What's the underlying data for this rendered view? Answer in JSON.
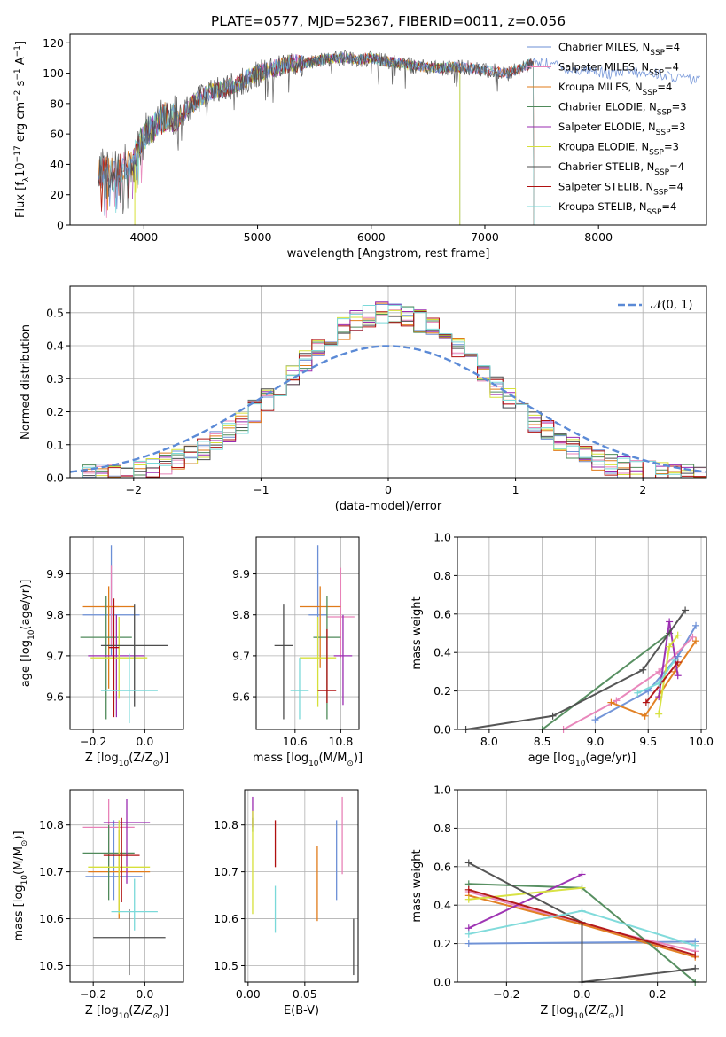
{
  "figure": {
    "title": "PLATE=0577, MJD=52367, FIBERID=0011, z=0.056"
  },
  "colors": {
    "Chabrier MILES": "#6b8fd6",
    "Salpeter MILES": "#e882b8",
    "Kroupa MILES": "#e07b1a",
    "Chabrier ELODIE": "#4f8a5a",
    "Salpeter ELODIE": "#9a2bb0",
    "Kroupa ELODIE": "#d6e03a",
    "Chabrier STELIB": "#4d4d4d",
    "Salpeter STELIB": "#b01010",
    "Kroupa STELIB": "#7ad9d9",
    "gaussian": "#5b8ad6",
    "grid": "#b0b0b0"
  },
  "chart_data": [
    {
      "id": "spectrum",
      "type": "line",
      "xlabel": "wavelength [Angstrom, rest frame]",
      "ylabel": "Flux [f_λ 10^-17 erg cm^-2 s^-1 A^-1]",
      "xlim": [
        3350,
        8950
      ],
      "ylim": [
        0,
        126
      ],
      "xticks": [
        4000,
        5000,
        6000,
        7000,
        8000
      ],
      "yticks": [
        0,
        20,
        40,
        60,
        80,
        100,
        120
      ],
      "grid": false,
      "legend": "top-right",
      "series_names": [
        "Chabrier MILES, N_SSP=4",
        "Salpeter MILES, N_SSP=4",
        "Kroupa MILES, N_SSP=4",
        "Chabrier ELODIE, N_SSP=3",
        "Salpeter ELODIE, N_SSP=3",
        "Kroupa ELODIE, N_SSP=3",
        "Chabrier STELIB, N_SSP=4",
        "Salpeter STELIB, N_SSP=4",
        "Kroupa STELIB, N_SSP=4"
      ],
      "series_ranges": [
        [
          3600,
          8900
        ],
        [
          3600,
          7430
        ],
        [
          3600,
          7430
        ],
        [
          3900,
          6780
        ],
        [
          3900,
          6780
        ],
        [
          3900,
          6780
        ],
        [
          3600,
          7430
        ],
        [
          3600,
          7430
        ],
        [
          3600,
          7430
        ]
      ],
      "continuum": {
        "x": [
          3600,
          3700,
          3800,
          3900,
          3950,
          4000,
          4100,
          4200,
          4300,
          4400,
          4500,
          4600,
          4700,
          4800,
          4900,
          5000,
          5100,
          5200,
          5300,
          5400,
          5500,
          5600,
          5700,
          5800,
          5900,
          6000,
          6100,
          6200,
          6300,
          6400,
          6500,
          6600,
          6700,
          6800,
          6900,
          7000,
          7100,
          7200,
          7300,
          7400,
          7500,
          7600,
          7700,
          7800,
          7900,
          8000,
          8100,
          8200,
          8300,
          8400,
          8500,
          8600,
          8700,
          8800,
          8900
        ],
        "y": [
          35,
          36,
          38,
          40,
          52,
          58,
          66,
          72,
          70,
          78,
          84,
          88,
          90,
          92,
          96,
          100,
          102,
          104,
          107,
          106,
          108,
          109,
          110,
          110,
          109,
          110,
          108,
          107,
          106,
          104,
          104,
          103,
          104,
          104,
          103,
          102,
          101,
          100,
          103,
          106,
          107,
          106,
          103,
          102,
          102,
          101,
          99,
          100,
          101,
          99,
          100,
          98,
          97,
          96,
          95
        ]
      }
    },
    {
      "id": "residuals",
      "type": "histogram",
      "xlabel": "(data-model)/error",
      "ylabel": "Normed distribution",
      "xlim": [
        -2.5,
        2.5
      ],
      "ylim": [
        0,
        0.58
      ],
      "xticks": [
        -2,
        -1,
        0,
        1,
        2
      ],
      "yticks": [
        0.0,
        0.1,
        0.2,
        0.3,
        0.4,
        0.5
      ],
      "grid": true,
      "bin_edges_range": [
        -2.5,
        2.5
      ],
      "bin_width": 0.1,
      "gaussian_label": "𝒩(0, 1)",
      "legend": "top-right"
    },
    {
      "id": "age-vs-Z",
      "type": "scatter",
      "xlabel": "Z [log10(Z/Z_⊙)]",
      "ylabel": "age [log10(age/yr)]",
      "xlim": [
        -0.29,
        0.15
      ],
      "ylim": [
        9.52,
        9.99
      ],
      "xticks": [
        -0.2,
        0.0
      ],
      "yticks": [
        9.6,
        9.7,
        9.8,
        9.9
      ],
      "grid": true,
      "points": [
        {
          "series": "Chabrier MILES",
          "x": -0.13,
          "xerr": 0.11,
          "y": 9.8,
          "yerr": [
            0.1,
            0.17
          ]
        },
        {
          "series": "Salpeter MILES",
          "x": -0.13,
          "xerr": 0.03,
          "y": 9.82,
          "yerr": [
            0.1,
            0.1
          ]
        },
        {
          "series": "Kroupa MILES",
          "x": -0.14,
          "xerr": 0.1,
          "y": 9.82,
          "yerr": [
            0.2,
            0.05
          ]
        },
        {
          "series": "Chabrier ELODIE",
          "x": -0.15,
          "xerr": 0.1,
          "y": 9.745,
          "yerr": [
            0.2,
            0.1
          ]
        },
        {
          "series": "Salpeter ELODIE",
          "x": -0.11,
          "xerr": 0.11,
          "y": 9.7,
          "yerr": [
            0.15,
            0.1
          ]
        },
        {
          "series": "Kroupa ELODIE",
          "x": -0.1,
          "xerr": 0.11,
          "y": 9.695,
          "yerr": [
            0.1,
            0.1
          ]
        },
        {
          "series": "Chabrier STELIB",
          "x": -0.04,
          "xerr": 0.13,
          "y": 9.725,
          "yerr": [
            0.15,
            0.1
          ]
        },
        {
          "series": "Salpeter STELIB",
          "x": -0.12,
          "xerr": 0.02,
          "y": 9.72,
          "yerr": [
            0.17,
            0.12
          ]
        },
        {
          "series": "Kroupa STELIB",
          "x": -0.06,
          "xerr": 0.11,
          "y": 9.615,
          "yerr": [
            0.08,
            0.09
          ]
        }
      ]
    },
    {
      "id": "age-vs-mass",
      "type": "scatter",
      "xlabel": "mass [log10(M/M_⊙)]",
      "ylabel": "",
      "xlim": [
        10.43,
        10.88
      ],
      "ylim": [
        9.52,
        9.99
      ],
      "xticks": [
        10.6,
        10.8
      ],
      "yticks": [
        9.6,
        9.7,
        9.8,
        9.9
      ],
      "grid": true,
      "points": [
        {
          "series": "Chabrier MILES",
          "x": 10.7,
          "xerr": 0.04,
          "y": 9.8,
          "yerr": [
            0.1,
            0.17
          ]
        },
        {
          "series": "Salpeter MILES",
          "x": 10.8,
          "xerr": 0.06,
          "y": 9.795,
          "yerr": [
            0.1,
            0.12
          ]
        },
        {
          "series": "Kroupa MILES",
          "x": 10.71,
          "xerr": 0.09,
          "y": 9.82,
          "yerr": [
            0.15,
            0.05
          ]
        },
        {
          "series": "Chabrier ELODIE",
          "x": 10.74,
          "xerr": 0.06,
          "y": 9.745,
          "yerr": [
            0.2,
            0.1
          ]
        },
        {
          "series": "Salpeter ELODIE",
          "x": 10.81,
          "xerr": 0.04,
          "y": 9.7,
          "yerr": [
            0.12,
            0.1
          ]
        },
        {
          "series": "Kroupa ELODIE",
          "x": 10.7,
          "xerr": 0.08,
          "y": 9.695,
          "yerr": [
            0.12,
            0.1
          ]
        },
        {
          "series": "Chabrier STELIB",
          "x": 10.55,
          "xerr": 0.04,
          "y": 9.725,
          "yerr": [
            0.18,
            0.1
          ]
        },
        {
          "series": "Salpeter STELIB",
          "x": 10.74,
          "xerr": 0.04,
          "y": 9.615,
          "yerr": [
            0.03,
            0.15
          ]
        },
        {
          "series": "Kroupa STELIB",
          "x": 10.62,
          "xerr": 0.04,
          "y": 9.615,
          "yerr": [
            0.07,
            0.08
          ]
        }
      ]
    },
    {
      "id": "mass-weight-vs-age",
      "type": "line",
      "xlabel": "age [log10(age/yr)]",
      "ylabel": "mass weight",
      "xlim": [
        7.7,
        10.05
      ],
      "ylim": [
        0.0,
        1.0
      ],
      "xticks": [
        8.0,
        8.5,
        9.0,
        9.5,
        10.0
      ],
      "yticks": [
        0.0,
        0.2,
        0.4,
        0.6,
        0.8,
        1.0
      ],
      "grid": true,
      "series": [
        {
          "name": "Chabrier MILES",
          "x": [
            9.0,
            9.5,
            9.78,
            9.95
          ],
          "y": [
            0.05,
            0.2,
            0.38,
            0.54
          ]
        },
        {
          "name": "Salpeter MILES",
          "x": [
            8.7,
            9.2,
            9.6,
            9.92
          ],
          "y": [
            0.0,
            0.15,
            0.3,
            0.48
          ]
        },
        {
          "name": "Kroupa MILES",
          "x": [
            9.15,
            9.47,
            9.75,
            9.95
          ],
          "y": [
            0.14,
            0.07,
            0.3,
            0.46
          ]
        },
        {
          "name": "Chabrier ELODIE",
          "x": [
            8.5,
            9.7
          ],
          "y": [
            0.0,
            0.5
          ]
        },
        {
          "name": "Salpeter ELODIE",
          "x": [
            9.6,
            9.7,
            9.78
          ],
          "y": [
            0.17,
            0.56,
            0.28
          ]
        },
        {
          "name": "Kroupa ELODIE",
          "x": [
            9.6,
            9.7,
            9.78
          ],
          "y": [
            0.08,
            0.43,
            0.49
          ]
        },
        {
          "name": "Chabrier STELIB",
          "x": [
            7.78,
            8.6,
            9.45,
            9.85
          ],
          "y": [
            0.0,
            0.07,
            0.31,
            0.62
          ]
        },
        {
          "name": "Salpeter STELIB",
          "x": [
            9.48,
            9.78
          ],
          "y": [
            0.14,
            0.35
          ]
        },
        {
          "name": "Kroupa STELIB",
          "x": [
            9.4,
            9.6,
            9.75
          ],
          "y": [
            0.19,
            0.24,
            0.36
          ]
        }
      ]
    },
    {
      "id": "mass-vs-Z",
      "type": "scatter",
      "xlabel": "Z [log10(Z/Z_⊙)]",
      "ylabel": "mass [log10(M/M_⊙)]",
      "xlim": [
        -0.29,
        0.15
      ],
      "ylim": [
        10.465,
        10.875
      ],
      "xticks": [
        -0.2,
        0.0
      ],
      "yticks": [
        10.5,
        10.6,
        10.7,
        10.8
      ],
      "grid": true,
      "points": [
        {
          "series": "Chabrier MILES",
          "x": -0.12,
          "xerr": 0.11,
          "y": 10.69,
          "yerr": [
            0.05,
            0.12
          ]
        },
        {
          "series": "Salpeter MILES",
          "x": -0.14,
          "xerr": 0.1,
          "y": 10.795,
          "yerr": [
            0.09,
            0.06
          ]
        },
        {
          "series": "Kroupa MILES",
          "x": -0.1,
          "xerr": 0.12,
          "y": 10.7,
          "yerr": [
            0.1,
            0.09
          ]
        },
        {
          "series": "Chabrier ELODIE",
          "x": -0.14,
          "xerr": 0.1,
          "y": 10.74,
          "yerr": [
            0.1,
            0.06
          ]
        },
        {
          "series": "Salpeter ELODIE",
          "x": -0.07,
          "xerr": 0.09,
          "y": 10.805,
          "yerr": [
            0.13,
            0.05
          ]
        },
        {
          "series": "Kroupa ELODIE",
          "x": -0.1,
          "xerr": 0.12,
          "y": 10.71,
          "yerr": [
            0.1,
            0.1
          ]
        },
        {
          "series": "Chabrier STELIB",
          "x": -0.06,
          "xerr": 0.14,
          "y": 10.56,
          "yerr": [
            0.08,
            0.06
          ]
        },
        {
          "series": "Salpeter STELIB",
          "x": -0.09,
          "xerr": 0.07,
          "y": 10.735,
          "yerr": [
            0.1,
            0.08
          ]
        },
        {
          "series": "Kroupa STELIB",
          "x": -0.04,
          "xerr": 0.09,
          "y": 10.615,
          "yerr": [
            0.04,
            0.07
          ]
        }
      ]
    },
    {
      "id": "mass-vs-EBV",
      "type": "scatter",
      "xlabel": "E(B-V)",
      "ylabel": "",
      "xlim": [
        -0.003,
        0.097
      ],
      "ylim": [
        10.465,
        10.875
      ],
      "xticks": [
        0.0,
        0.05
      ],
      "tick_labels": [
        "0.00",
        "0.05"
      ],
      "yticks": [
        10.5,
        10.6,
        10.7,
        10.8
      ],
      "grid": true,
      "points": [
        {
          "series": "Chabrier MILES",
          "x": 0.078,
          "y": 10.725,
          "yerr": [
            0.085,
            0.085
          ]
        },
        {
          "series": "Salpeter MILES",
          "x": 0.083,
          "y": 10.775,
          "yerr": [
            0.08,
            0.085
          ]
        },
        {
          "series": "Kroupa MILES",
          "x": 0.061,
          "y": 10.675,
          "yerr": [
            0.08,
            0.08
          ]
        },
        {
          "series": "Chabrier ELODIE",
          "x": 0.004,
          "y": 10.8,
          "yerr": [
            0.015,
            0.015
          ]
        },
        {
          "series": "Salpeter ELODIE",
          "x": 0.004,
          "y": 10.82,
          "yerr": [
            0.025,
            0.04
          ]
        },
        {
          "series": "Kroupa ELODIE",
          "x": 0.004,
          "y": 10.72,
          "yerr": [
            0.11,
            0.11
          ]
        },
        {
          "series": "Chabrier STELIB",
          "x": 0.093,
          "y": 10.54,
          "yerr": [
            0.06,
            0.06
          ]
        },
        {
          "series": "Salpeter STELIB",
          "x": 0.024,
          "y": 10.76,
          "yerr": [
            0.05,
            0.05
          ]
        },
        {
          "series": "Kroupa STELIB",
          "x": 0.024,
          "y": 10.62,
          "yerr": [
            0.05,
            0.05
          ]
        }
      ]
    },
    {
      "id": "mass-weight-vs-Z",
      "type": "line",
      "xlabel": "Z [log10(Z/Z_⊙)]",
      "ylabel": "mass weight",
      "xlim": [
        -0.33,
        0.33
      ],
      "ylim": [
        0.0,
        1.0
      ],
      "xticks": [
        -0.2,
        0.0,
        0.2
      ],
      "yticks": [
        0.0,
        0.2,
        0.4,
        0.6,
        0.8,
        1.0
      ],
      "grid": true,
      "series": [
        {
          "name": "Chabrier MILES",
          "x": [
            -0.3,
            0.3
          ],
          "y": [
            0.2,
            0.21
          ]
        },
        {
          "name": "Salpeter MILES",
          "x": [
            -0.3,
            0.0,
            0.3
          ],
          "y": [
            0.47,
            0.3,
            0.16
          ]
        },
        {
          "name": "Kroupa MILES",
          "x": [
            -0.3,
            0.0,
            0.3
          ],
          "y": [
            0.45,
            0.3,
            0.13
          ]
        },
        {
          "name": "Chabrier ELODIE",
          "x": [
            -0.3,
            0.0,
            0.3
          ],
          "y": [
            0.51,
            0.49,
            0.0
          ]
        },
        {
          "name": "Salpeter ELODIE",
          "x": [
            -0.3,
            0.0
          ],
          "y": [
            0.28,
            0.56
          ]
        },
        {
          "name": "Kroupa ELODIE",
          "x": [
            -0.3,
            0.0
          ],
          "y": [
            0.43,
            0.49
          ]
        },
        {
          "name": "Chabrier STELIB",
          "x": [
            -0.3,
            0.0,
            0.0,
            0.3
          ],
          "y": [
            0.62,
            0.31,
            0.0,
            0.07
          ]
        },
        {
          "name": "Salpeter STELIB",
          "x": [
            -0.3,
            0.3
          ],
          "y": [
            0.48,
            0.14
          ]
        },
        {
          "name": "Kroupa STELIB",
          "x": [
            -0.3,
            0.0,
            0.3
          ],
          "y": [
            0.25,
            0.37,
            0.19
          ]
        }
      ]
    }
  ]
}
